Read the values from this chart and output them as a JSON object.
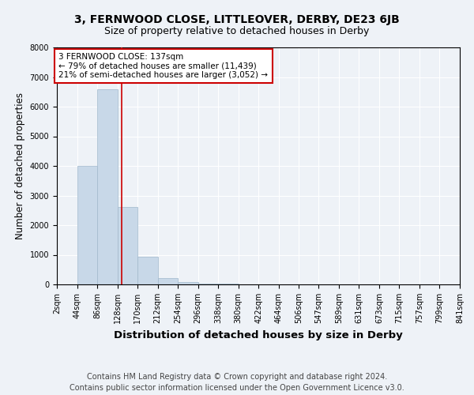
{
  "title1": "3, FERNWOOD CLOSE, LITTLEOVER, DERBY, DE23 6JB",
  "title2": "Size of property relative to detached houses in Derby",
  "xlabel": "Distribution of detached houses by size in Derby",
  "ylabel": "Number of detached properties",
  "footnote1": "Contains HM Land Registry data © Crown copyright and database right 2024.",
  "footnote2": "Contains public sector information licensed under the Open Government Licence v3.0.",
  "annotation_line1": "3 FERNWOOD CLOSE: 137sqm",
  "annotation_line2": "← 79% of detached houses are smaller (11,439)",
  "annotation_line3": "21% of semi-detached houses are larger (3,052) →",
  "property_value": 137,
  "bin_edges": [
    2,
    44,
    86,
    128,
    170,
    212,
    254,
    296,
    338,
    380,
    422,
    464,
    506,
    547,
    589,
    631,
    673,
    715,
    757,
    799,
    841
  ],
  "bar_heights": [
    4,
    3990,
    6580,
    2620,
    940,
    220,
    70,
    30,
    15,
    8,
    5,
    3,
    2,
    1,
    1,
    0,
    0,
    0,
    0,
    0
  ],
  "bar_color": "#c8d8e8",
  "bar_edgecolor": "#a0b8cc",
  "vline_color": "#cc0000",
  "vline_x": 137,
  "ylim": [
    0,
    8000
  ],
  "yticks": [
    0,
    1000,
    2000,
    3000,
    4000,
    5000,
    6000,
    7000,
    8000
  ],
  "background_color": "#eef2f7",
  "plot_background": "#eef2f7",
  "annotation_box_facecolor": "#ffffff",
  "annotation_box_edgecolor": "#cc0000",
  "title1_fontsize": 10,
  "title2_fontsize": 9,
  "xlabel_fontsize": 9.5,
  "ylabel_fontsize": 8.5,
  "footnote_fontsize": 7,
  "tick_fontsize": 7,
  "annotation_fontsize": 7.5
}
